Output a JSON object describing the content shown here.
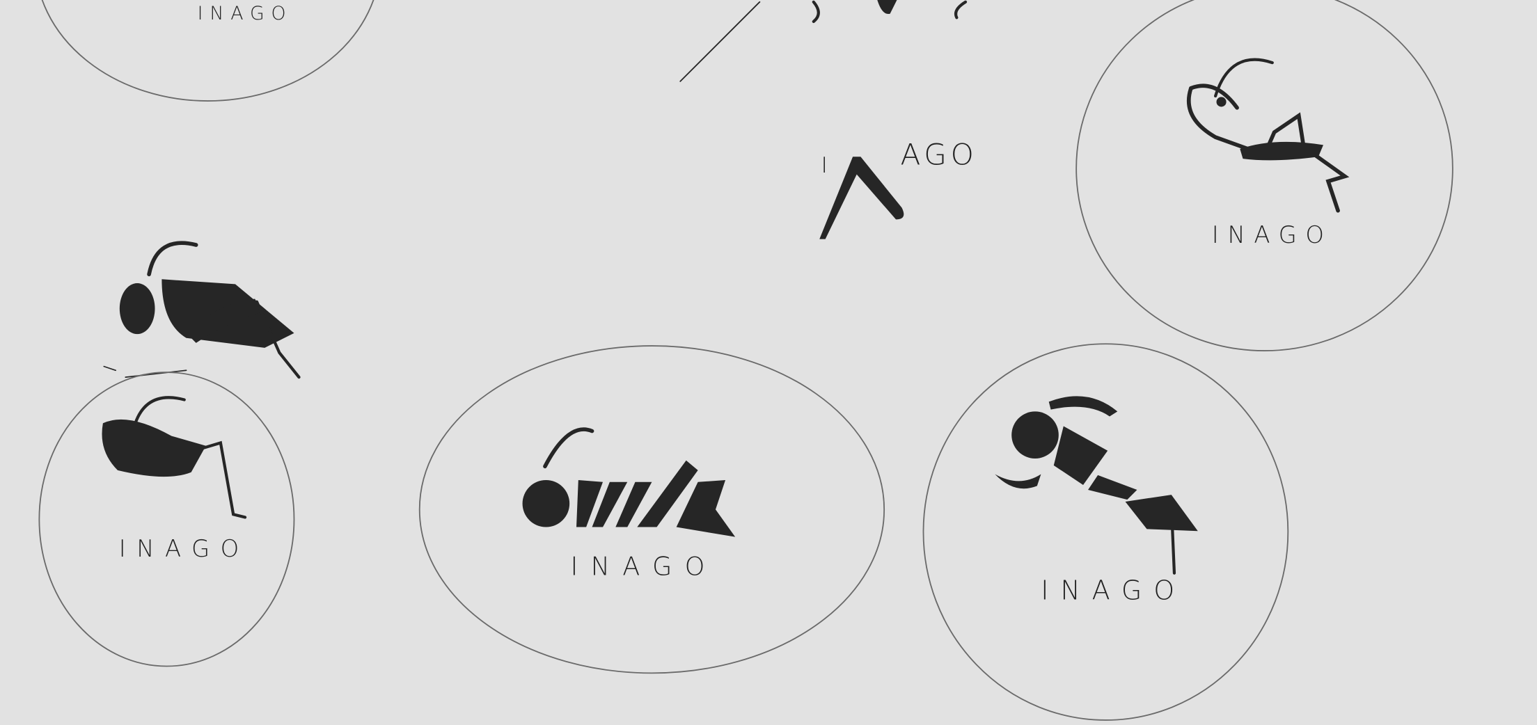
{
  "sketches": [
    {
      "label": "INAGO"
    },
    {
      "label": "INAGO"
    },
    {
      "label": "INAGO"
    },
    {
      "label": "INAGO"
    },
    {
      "label": "INAGO"
    }
  ],
  "loose_sketch": {
    "prefix": "I",
    "suffix": "AGO"
  }
}
